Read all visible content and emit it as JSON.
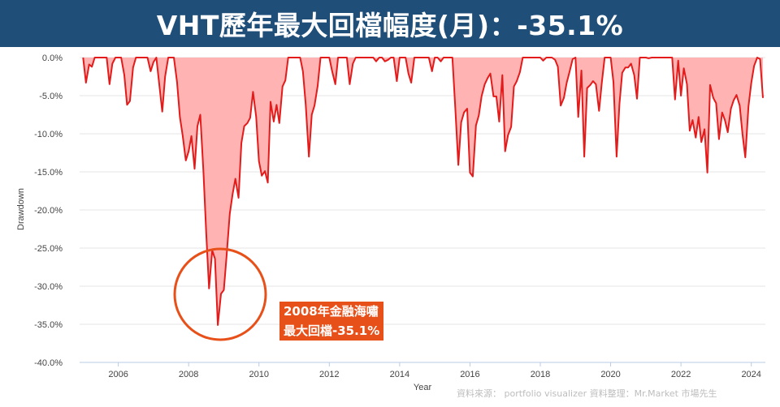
{
  "header": {
    "title": "VHT歷年最大回檔幅度(月)：-35.1%"
  },
  "annotation": {
    "line1": "2008年金融海嘯",
    "line2": "最大回檔-35.1%"
  },
  "source_note": "資料來源： portfolio visualizer 資料整理：Mr.Market 市場先生",
  "colors": {
    "header_bg": "#1f4e79",
    "line": "#e31b1b",
    "fill": "#ffb3b3",
    "annotation_bg": "#e8501a",
    "circle": "#e8501a"
  },
  "chart_data": {
    "type": "area",
    "title": "",
    "xlabel": "Year",
    "ylabel": "Drawdown",
    "x_range": [
      2004.9,
      2024.4
    ],
    "ylim": [
      -40,
      0
    ],
    "y_ticks": [
      "0.0%",
      "-5.0%",
      "-10.0%",
      "-15.0%",
      "-20.0%",
      "-25.0%",
      "-30.0%",
      "-35.0%",
      "-40.0%"
    ],
    "y_tick_values": [
      0,
      -5,
      -10,
      -15,
      -20,
      -25,
      -30,
      -35,
      -40
    ],
    "x_ticks": [
      "2006",
      "2008",
      "2010",
      "2012",
      "2014",
      "2016",
      "2018",
      "2020",
      "2022",
      "2024"
    ],
    "x_tick_values": [
      2006,
      2008,
      2010,
      2012,
      2014,
      2016,
      2018,
      2020,
      2022,
      2024
    ],
    "grid": true,
    "series": [
      {
        "x": [
          2005.0,
          2005.08,
          2005.17,
          2005.25,
          2005.33,
          2005.42,
          2005.5,
          2005.58,
          2005.67,
          2005.75,
          2005.83,
          2005.92,
          2006.0,
          2006.08,
          2006.17,
          2006.25,
          2006.33,
          2006.42,
          2006.5,
          2006.58,
          2006.67,
          2006.75,
          2006.83,
          2006.92,
          2007.0,
          2007.08,
          2007.17,
          2007.25,
          2007.33,
          2007.42,
          2007.5,
          2007.58,
          2007.67,
          2007.75,
          2007.83,
          2007.92,
          2008.0,
          2008.08,
          2008.17,
          2008.25,
          2008.33,
          2008.42,
          2008.5,
          2008.58,
          2008.67,
          2008.75,
          2008.83,
          2008.92,
          2009.0,
          2009.08,
          2009.17,
          2009.25,
          2009.33,
          2009.42,
          2009.5,
          2009.58,
          2009.67,
          2009.75,
          2009.83,
          2009.92,
          2010.0,
          2010.08,
          2010.17,
          2010.25,
          2010.33,
          2010.42,
          2010.5,
          2010.58,
          2010.67,
          2010.75,
          2010.83,
          2010.92,
          2011.0,
          2011.08,
          2011.17,
          2011.25,
          2011.33,
          2011.42,
          2011.5,
          2011.58,
          2011.67,
          2011.75,
          2011.83,
          2011.92,
          2012.0,
          2012.08,
          2012.17,
          2012.25,
          2012.33,
          2012.42,
          2012.5,
          2012.58,
          2012.67,
          2012.75,
          2012.83,
          2012.92,
          2013.0,
          2013.08,
          2013.17,
          2013.25,
          2013.33,
          2013.42,
          2013.5,
          2013.58,
          2013.67,
          2013.75,
          2013.83,
          2013.92,
          2014.0,
          2014.08,
          2014.17,
          2014.25,
          2014.33,
          2014.42,
          2014.5,
          2014.58,
          2014.67,
          2014.75,
          2014.83,
          2014.92,
          2015.0,
          2015.08,
          2015.17,
          2015.25,
          2015.33,
          2015.42,
          2015.5,
          2015.58,
          2015.67,
          2015.75,
          2015.83,
          2015.92,
          2016.0,
          2016.08,
          2016.17,
          2016.25,
          2016.33,
          2016.42,
          2016.5,
          2016.58,
          2016.67,
          2016.75,
          2016.83,
          2016.92,
          2017.0,
          2017.08,
          2017.17,
          2017.25,
          2017.33,
          2017.42,
          2017.5,
          2017.58,
          2017.67,
          2017.75,
          2017.83,
          2017.92,
          2018.0,
          2018.08,
          2018.17,
          2018.25,
          2018.33,
          2018.42,
          2018.5,
          2018.58,
          2018.67,
          2018.75,
          2018.83,
          2018.92,
          2019.0,
          2019.08,
          2019.17,
          2019.25,
          2019.33,
          2019.42,
          2019.5,
          2019.58,
          2019.67,
          2019.75,
          2019.83,
          2019.92,
          2020.0,
          2020.08,
          2020.17,
          2020.25,
          2020.33,
          2020.42,
          2020.5,
          2020.58,
          2020.67,
          2020.75,
          2020.83,
          2020.92,
          2021.0,
          2021.08,
          2021.17,
          2021.25,
          2021.33,
          2021.42,
          2021.5,
          2021.58,
          2021.67,
          2021.75,
          2021.83,
          2021.92,
          2022.0,
          2022.08,
          2022.17,
          2022.25,
          2022.33,
          2022.42,
          2022.5,
          2022.58,
          2022.67,
          2022.75,
          2022.83,
          2022.92,
          2023.0,
          2023.08,
          2023.17,
          2023.25,
          2023.33,
          2023.42,
          2023.5,
          2023.58,
          2023.67,
          2023.75,
          2023.83,
          2023.92,
          2024.0,
          2024.08,
          2024.17,
          2024.25,
          2024.33
        ],
        "y": [
          0,
          -3.3,
          -0.9,
          -1.2,
          0,
          0,
          0,
          0,
          0,
          -3.5,
          -0.8,
          0,
          0,
          0,
          -2.3,
          -6.2,
          -5.7,
          -1.3,
          0,
          0,
          0,
          0,
          0,
          -1.8,
          -0.6,
          0,
          -3.8,
          -7.1,
          -2.5,
          0,
          0,
          0,
          -3.2,
          -7.8,
          -10.2,
          -13.5,
          -12.3,
          -10.3,
          -14.6,
          -9.0,
          -7.5,
          -15.0,
          -23.0,
          -30.3,
          -25.3,
          -26.4,
          -35.1,
          -31.0,
          -30.5,
          -26.0,
          -20.5,
          -17.9,
          -15.9,
          -18.4,
          -11.2,
          -9.0,
          -8.6,
          -7.9,
          -4.5,
          -7.8,
          -13.6,
          -15.5,
          -14.9,
          -16.4,
          -5.8,
          -8.4,
          -6.2,
          -8.6,
          -3.8,
          -3.0,
          0,
          0,
          0,
          0,
          0,
          -1.8,
          -6.2,
          -13.0,
          -7.5,
          -6.3,
          -3.7,
          0,
          0,
          0,
          0,
          -1.8,
          -3.5,
          0,
          0,
          0,
          0,
          -3.5,
          -0.8,
          0,
          0,
          0,
          0,
          0,
          0,
          0,
          -0.5,
          0,
          0,
          -0.5,
          -0.3,
          0,
          0,
          -3.1,
          0,
          0,
          0,
          -2.1,
          -3.3,
          0,
          0,
          0,
          0,
          0,
          0,
          -1.8,
          0,
          0,
          -0.5,
          0,
          0,
          0,
          0,
          -6.5,
          -14.1,
          -8.5,
          -7.2,
          -6.7,
          -15.1,
          -15.6,
          -8.9,
          -7.6,
          -5.1,
          -3.5,
          -2.7,
          -2.1,
          -5.1,
          -5.1,
          -8.4,
          -2.3,
          -12.3,
          -10.2,
          -9.1,
          -3.8,
          -3.1,
          -1.9,
          0,
          0,
          0,
          0,
          0,
          0,
          0,
          -0.4,
          0,
          0,
          0,
          -0.3,
          -1.2,
          -6.3,
          -5.3,
          -3.3,
          -1.9,
          -0.2,
          0,
          -7.8,
          -1.7,
          -13.0,
          -4.0,
          -3.6,
          -3.1,
          -3.5,
          -7.0,
          -3.3,
          0,
          0,
          0,
          -3.2,
          -13.0,
          -6.1,
          -2.0,
          -1.3,
          -1.3,
          -0.8,
          -2.3,
          -5.4,
          0,
          0,
          0,
          -0.1,
          0,
          0,
          0,
          0,
          0,
          0,
          0,
          0,
          -5.5,
          -0.4,
          -5.0,
          -1.4,
          -3.5,
          -9.6,
          -8.2,
          -10.5,
          -7.8,
          -11.1,
          -9.4,
          -15.1,
          -3.6,
          -5.3,
          -6.0,
          -10.7,
          -7.2,
          -8.2,
          -9.8,
          -6.7,
          -5.6,
          -4.9,
          -6.3,
          -10.1,
          -13.1,
          -6.4,
          -3.3,
          -1.1,
          0,
          -0.2,
          -5.3
        ]
      }
    ]
  }
}
